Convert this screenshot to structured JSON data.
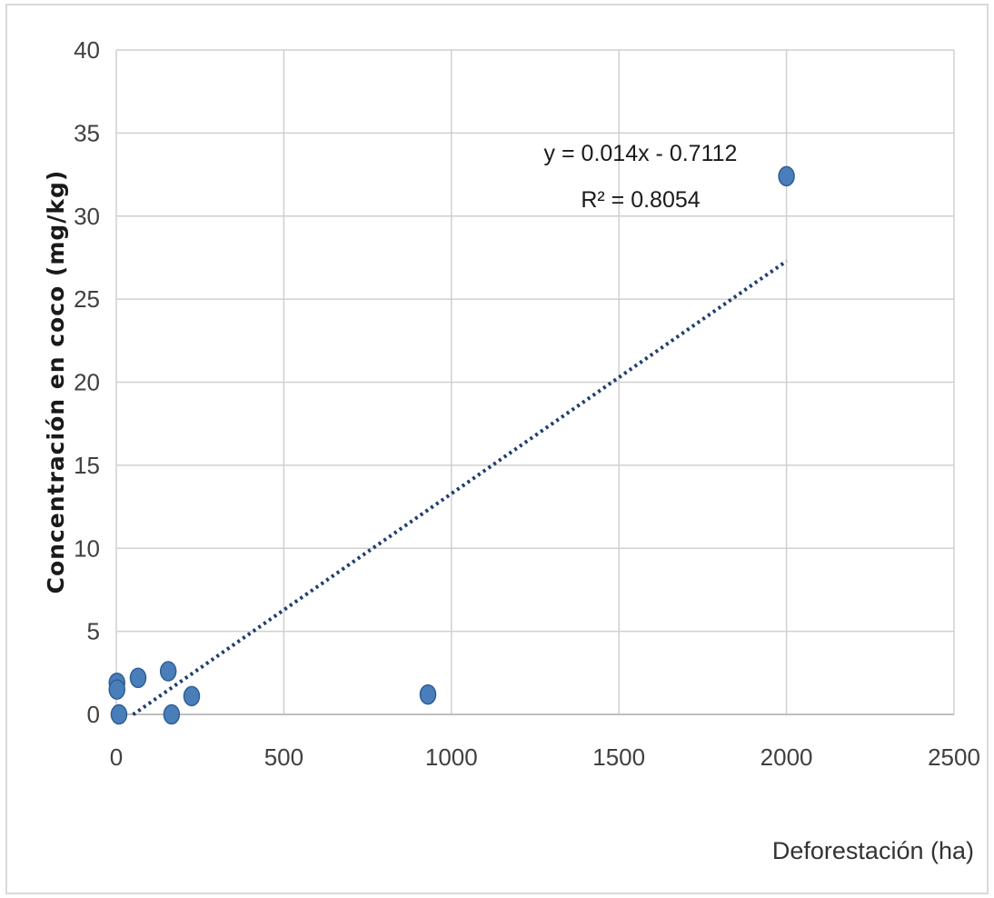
{
  "chart_data": {
    "type": "scatter",
    "xlabel": "Deforestación (ha)",
    "ylabel": "Concentración en coco (mg/kg)",
    "xlim": [
      0,
      2500
    ],
    "ylim": [
      0,
      40
    ],
    "x_ticks": [
      "0",
      "500",
      "1000",
      "1500",
      "2000",
      "2500"
    ],
    "y_ticks": [
      "0",
      "5",
      "10",
      "15",
      "20",
      "25",
      "30",
      "35",
      "40"
    ],
    "grid": true,
    "points": [
      {
        "x": 2,
        "y": 1.9
      },
      {
        "x": 2,
        "y": 1.5
      },
      {
        "x": 8,
        "y": 0.0
      },
      {
        "x": 65,
        "y": 2.2
      },
      {
        "x": 155,
        "y": 2.6
      },
      {
        "x": 165,
        "y": 0.0
      },
      {
        "x": 225,
        "y": 1.1
      },
      {
        "x": 930,
        "y": 1.2
      },
      {
        "x": 2000,
        "y": 32.4
      }
    ],
    "trendline": {
      "slope": 0.014,
      "intercept": -0.7112,
      "x_range": [
        50,
        2000
      ],
      "equation": "y = 0.014x - 0.7112",
      "r2_text": "R² = 0.8054"
    },
    "colors": {
      "point": "#4a7ebb",
      "point_edge": "#2e5f94",
      "trendline": "#1f3f6e",
      "grid": "#d0d0d0"
    }
  }
}
